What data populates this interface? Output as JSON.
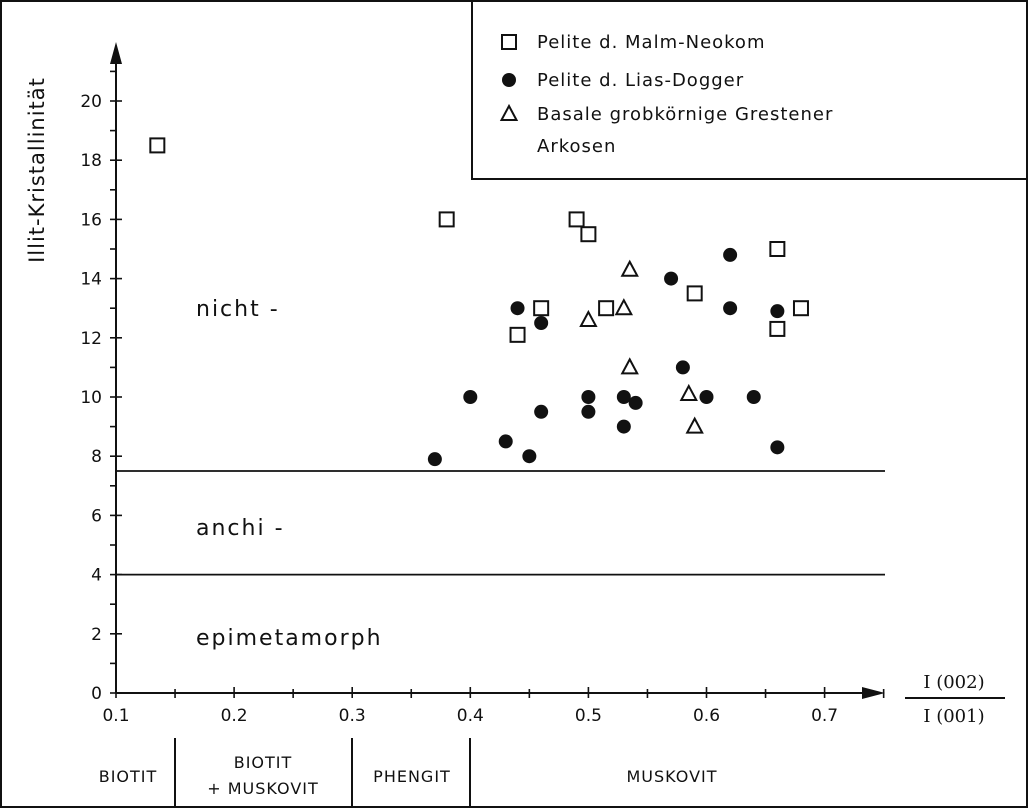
{
  "chart_data": {
    "type": "scatter",
    "title": "",
    "ylabel": "Illit-Kristallinität",
    "xlabel": {
      "numerator": "I (002)",
      "denominator": "I (001)"
    },
    "xlim": [
      0.1,
      0.75
    ],
    "ylim": [
      0,
      21
    ],
    "xticks": [
      "0.1",
      "0.2",
      "0.3",
      "0.4",
      "0.5",
      "0.6",
      "0.7"
    ],
    "yticks": [
      "0",
      "2",
      "4",
      "6",
      "8",
      "10",
      "12",
      "14",
      "16",
      "18",
      "20"
    ],
    "grid": false,
    "legend_position": "top-right",
    "thresholds": [
      {
        "y": 7.5,
        "label_above": "nicht -",
        "label_above_y": 13,
        "label_below": "anchi -"
      },
      {
        "y": 4,
        "label_below": "epimetamorph"
      }
    ],
    "zone_labels": [
      "nicht -",
      "anchi -",
      "epimetamorph"
    ],
    "mineral_zones": [
      {
        "lines": [
          "BIOTIT"
        ]
      },
      {
        "lines": [
          "BIOTIT",
          "+ MUSKOVIT"
        ]
      },
      {
        "lines": [
          "PHENGIT"
        ]
      },
      {
        "lines": [
          "MUSKOVIT"
        ]
      }
    ],
    "series": [
      {
        "name": "Pelite d. Malm-Neokom",
        "marker": "square",
        "points": [
          [
            0.135,
            18.5
          ],
          [
            0.38,
            16.0
          ],
          [
            0.44,
            12.1
          ],
          [
            0.46,
            13.0
          ],
          [
            0.49,
            16.0
          ],
          [
            0.5,
            15.5
          ],
          [
            0.515,
            13.0
          ],
          [
            0.59,
            13.5
          ],
          [
            0.66,
            15.0
          ],
          [
            0.66,
            12.3
          ],
          [
            0.68,
            13.0
          ]
        ]
      },
      {
        "name": "Pelite d. Lias-Dogger",
        "marker": "circle",
        "points": [
          [
            0.37,
            7.9
          ],
          [
            0.4,
            10.0
          ],
          [
            0.43,
            8.5
          ],
          [
            0.44,
            13.0
          ],
          [
            0.45,
            8.0
          ],
          [
            0.46,
            12.5
          ],
          [
            0.46,
            9.5
          ],
          [
            0.5,
            10.0
          ],
          [
            0.5,
            9.5
          ],
          [
            0.53,
            10.0
          ],
          [
            0.53,
            9.0
          ],
          [
            0.54,
            9.8
          ],
          [
            0.57,
            14.0
          ],
          [
            0.58,
            11.0
          ],
          [
            0.6,
            10.0
          ],
          [
            0.62,
            14.8
          ],
          [
            0.62,
            13.0
          ],
          [
            0.64,
            10.0
          ],
          [
            0.66,
            12.9
          ],
          [
            0.66,
            8.3
          ]
        ]
      },
      {
        "name": "Basale grobkörnige Grestener Arkosen",
        "marker": "triangle",
        "points": [
          [
            0.5,
            12.6
          ],
          [
            0.53,
            13.0
          ],
          [
            0.535,
            14.3
          ],
          [
            0.535,
            11.0
          ],
          [
            0.585,
            10.1
          ],
          [
            0.59,
            9.0
          ]
        ]
      }
    ],
    "legend_lines": [
      [
        "Pelite d. Malm-Neokom"
      ],
      [
        "Pelite d. Lias-Dogger"
      ],
      [
        "Basale grobkörnige Grestener",
        "Arkosen"
      ]
    ]
  }
}
